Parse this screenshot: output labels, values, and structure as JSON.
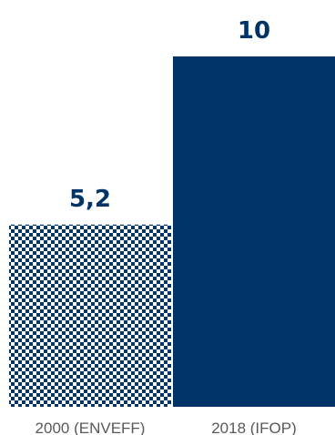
{
  "chart_data": {
    "type": "bar",
    "categories": [
      "2000 (ENVEFF)",
      "2018 (IFOP)"
    ],
    "values": [
      5.2,
      10
    ],
    "value_labels": [
      "5,2",
      "10"
    ],
    "ylim": [
      0,
      10
    ],
    "grid": false,
    "colors": {
      "bar": "#003366",
      "bar_pattern_light": "#ffffff",
      "value_label": "#003366",
      "tick_label": "#595959"
    },
    "bar_styles": [
      "checkerboard",
      "solid"
    ]
  }
}
